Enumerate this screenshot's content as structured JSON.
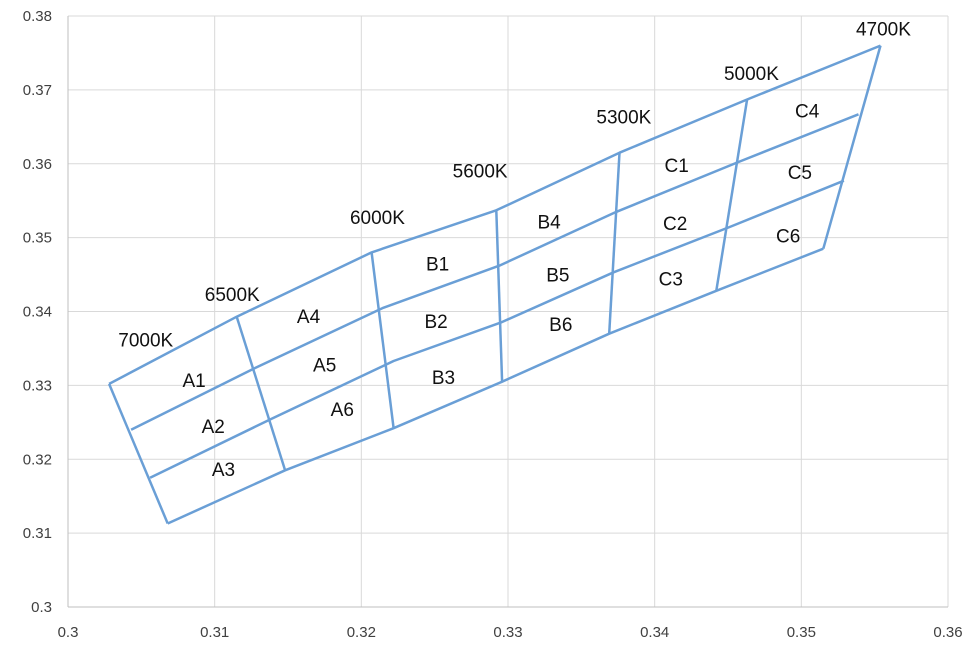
{
  "chart_data": {
    "type": "scatter",
    "title": "",
    "xlabel": "",
    "ylabel": "",
    "xlim": [
      0.3,
      0.36
    ],
    "ylim": [
      0.3,
      0.38
    ],
    "x_ticks": [
      0.3,
      0.31,
      0.32,
      0.33,
      0.34,
      0.35,
      0.36
    ],
    "y_ticks": [
      0.3,
      0.31,
      0.32,
      0.33,
      0.34,
      0.35,
      0.36,
      0.37,
      0.38
    ],
    "x_tick_labels": [
      "0.3",
      "0.31",
      "0.32",
      "0.33",
      "0.34",
      "0.35",
      "0.36"
    ],
    "y_tick_labels": [
      "0.3",
      "0.31",
      "0.32",
      "0.33",
      "0.34",
      "0.35",
      "0.36",
      "0.37",
      "0.38"
    ],
    "grid": true,
    "legend": "none",
    "colors": {
      "line": "#6a9fd6",
      "grid": "#d9d9d9",
      "axis": "#bfbfbf"
    },
    "series": [
      {
        "values": [
          [
            0.3028,
            0.3302
          ],
          [
            0.3115,
            0.3393
          ],
          [
            0.3207,
            0.348
          ],
          [
            0.3292,
            0.3537
          ],
          [
            0.3376,
            0.3615
          ],
          [
            0.3463,
            0.3687
          ],
          [
            0.3554,
            0.376
          ]
        ]
      },
      {
        "values": [
          [
            0.3043,
            0.324
          ],
          [
            0.3127,
            0.3323
          ],
          [
            0.3215,
            0.3405
          ],
          [
            0.3294,
            0.3462
          ],
          [
            0.3374,
            0.3535
          ],
          [
            0.3458,
            0.3603
          ],
          [
            0.3539,
            0.3667
          ]
        ]
      },
      {
        "values": [
          [
            0.3056,
            0.3175
          ],
          [
            0.3139,
            0.3255
          ],
          [
            0.3222,
            0.3333
          ],
          [
            0.3295,
            0.3385
          ],
          [
            0.3372,
            0.3453
          ],
          [
            0.3452,
            0.3515
          ],
          [
            0.3529,
            0.3577
          ]
        ]
      },
      {
        "values": [
          [
            0.3068,
            0.3113
          ],
          [
            0.3148,
            0.3185
          ],
          [
            0.3222,
            0.3242
          ],
          [
            0.3296,
            0.3305
          ],
          [
            0.3369,
            0.337
          ],
          [
            0.3442,
            0.3428
          ],
          [
            0.3515,
            0.3485
          ]
        ]
      },
      {
        "values": [
          [
            0.3028,
            0.3302
          ],
          [
            0.3068,
            0.3113
          ]
        ]
      },
      {
        "values": [
          [
            0.3115,
            0.3393
          ],
          [
            0.3148,
            0.3185
          ]
        ]
      },
      {
        "values": [
          [
            0.3207,
            0.348
          ],
          [
            0.3222,
            0.3242
          ]
        ]
      },
      {
        "values": [
          [
            0.3292,
            0.3537
          ],
          [
            0.3296,
            0.3305
          ]
        ]
      },
      {
        "values": [
          [
            0.3376,
            0.3615
          ],
          [
            0.3369,
            0.337
          ]
        ]
      },
      {
        "values": [
          [
            0.3463,
            0.3687
          ],
          [
            0.3442,
            0.3428
          ]
        ]
      },
      {
        "values": [
          [
            0.3554,
            0.376
          ],
          [
            0.3515,
            0.3485
          ]
        ]
      }
    ],
    "bin_labels": [
      {
        "text": "A1",
        "x": 0.3086,
        "y": 0.3307
      },
      {
        "text": "A2",
        "x": 0.3099,
        "y": 0.3245
      },
      {
        "text": "A3",
        "x": 0.3106,
        "y": 0.3187
      },
      {
        "text": "A4",
        "x": 0.3164,
        "y": 0.3394
      },
      {
        "text": "A5",
        "x": 0.3175,
        "y": 0.3328
      },
      {
        "text": "A6",
        "x": 0.3187,
        "y": 0.3268
      },
      {
        "text": "B1",
        "x": 0.3252,
        "y": 0.3465
      },
      {
        "text": "B2",
        "x": 0.3251,
        "y": 0.3387
      },
      {
        "text": "B3",
        "x": 0.3256,
        "y": 0.3311
      },
      {
        "text": "B4",
        "x": 0.3328,
        "y": 0.3522
      },
      {
        "text": "B5",
        "x": 0.3334,
        "y": 0.345
      },
      {
        "text": "B6",
        "x": 0.3336,
        "y": 0.3383
      },
      {
        "text": "C1",
        "x": 0.3415,
        "y": 0.3598
      },
      {
        "text": "C2",
        "x": 0.3414,
        "y": 0.352
      },
      {
        "text": "C3",
        "x": 0.3411,
        "y": 0.3445
      },
      {
        "text": "C4",
        "x": 0.3504,
        "y": 0.3672
      },
      {
        "text": "C5",
        "x": 0.3499,
        "y": 0.3589
      },
      {
        "text": "C6",
        "x": 0.3491,
        "y": 0.3503
      }
    ],
    "cct_labels": [
      {
        "text": "7000K",
        "x": 0.3053,
        "y": 0.3362
      },
      {
        "text": "6500K",
        "x": 0.3112,
        "y": 0.3424
      },
      {
        "text": "6000K",
        "x": 0.3211,
        "y": 0.3528
      },
      {
        "text": "5600K",
        "x": 0.3281,
        "y": 0.3591
      },
      {
        "text": "5300K",
        "x": 0.3379,
        "y": 0.3664
      },
      {
        "text": "5000K",
        "x": 0.3466,
        "y": 0.3723
      },
      {
        "text": "4700K",
        "x": 0.3556,
        "y": 0.3783
      }
    ]
  }
}
